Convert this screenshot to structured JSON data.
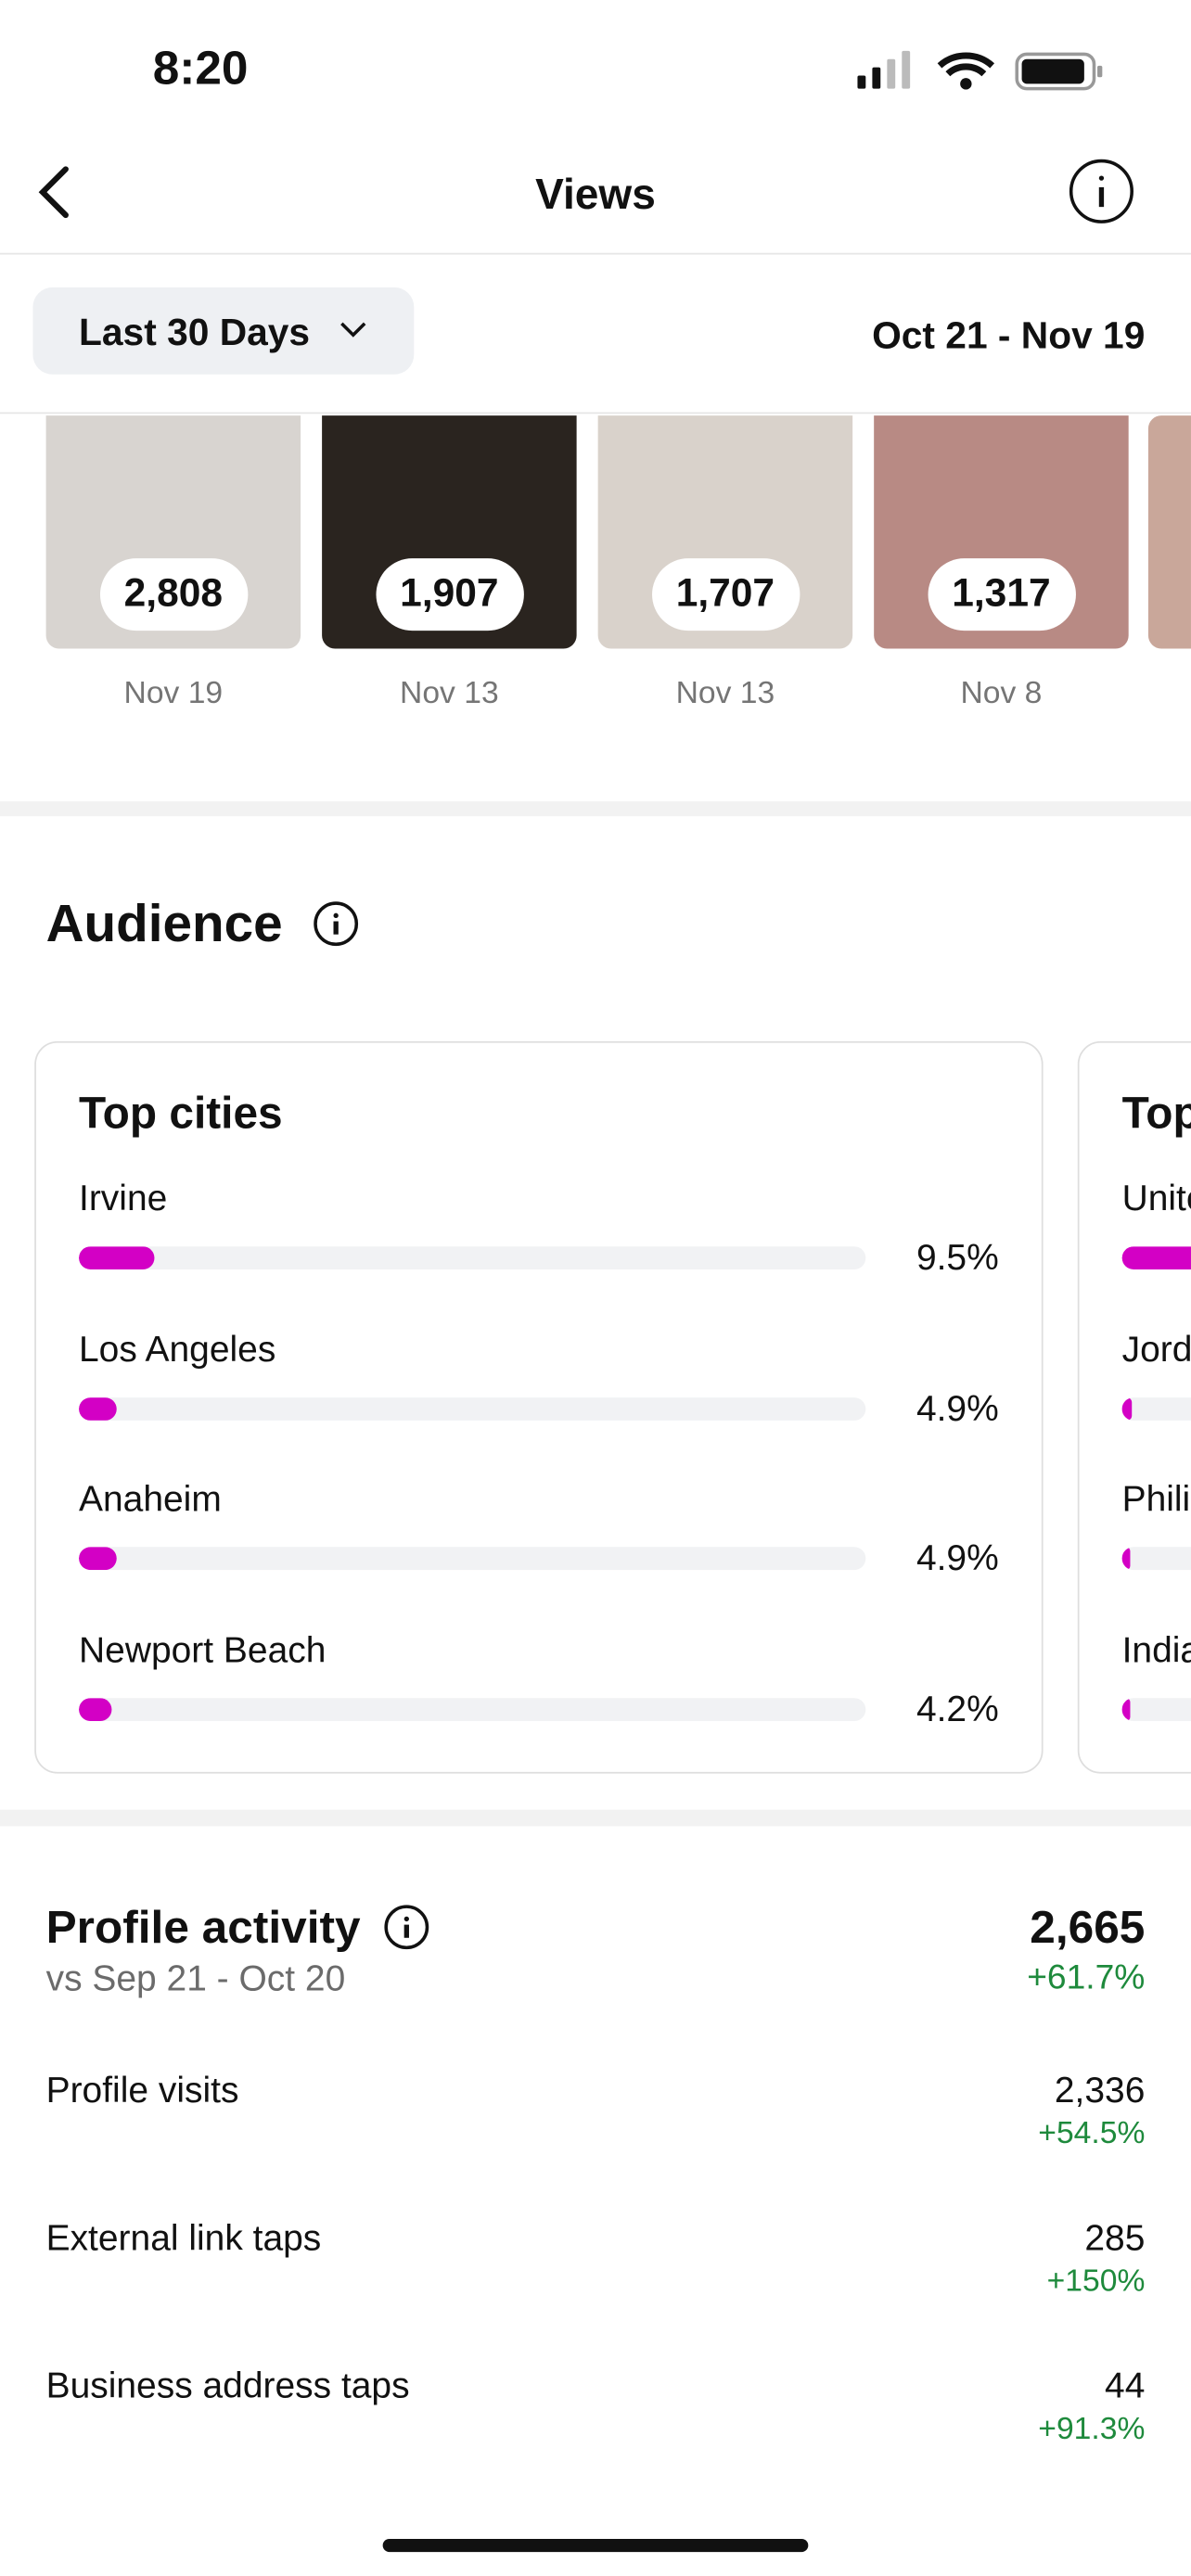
{
  "status": {
    "time": "8:20"
  },
  "header": {
    "title": "Views"
  },
  "filter": {
    "label": "Last 30 Days",
    "range": "Oct 21 - Nov 19"
  },
  "posts": [
    {
      "views": "2,808",
      "date": "Nov 19"
    },
    {
      "views": "1,907",
      "date": "Nov 13"
    },
    {
      "views": "1,707",
      "date": "Nov 13"
    },
    {
      "views": "1,317",
      "date": "Nov 8"
    }
  ],
  "audience": {
    "title": "Audience",
    "cards": [
      {
        "title": "Top cities",
        "rows": [
          {
            "name": "Irvine",
            "value": 9.5,
            "label": "9.5%"
          },
          {
            "name": "Los Angeles",
            "value": 4.9,
            "label": "4.9%"
          },
          {
            "name": "Anaheim",
            "value": 4.9,
            "label": "4.9%"
          },
          {
            "name": "Newport Beach",
            "value": 4.2,
            "label": "4.2%"
          }
        ]
      },
      {
        "title": "Top countries",
        "rows": [
          {
            "name": "United States",
            "value": 90
          },
          {
            "name": "Jordan",
            "value": 1.2
          },
          {
            "name": "Philippines",
            "value": 1.1
          },
          {
            "name": "India",
            "value": 1
          }
        ]
      }
    ]
  },
  "profile_activity": {
    "title": "Profile activity",
    "comparison": "vs Sep 21 - Oct 20",
    "total": "2,665",
    "change": "+61.7%",
    "rows": [
      {
        "label": "Profile visits",
        "value": "2,336",
        "change": "+54.5%"
      },
      {
        "label": "External link taps",
        "value": "285",
        "change": "+150%"
      },
      {
        "label": "Business address taps",
        "value": "44",
        "change": "+91.3%"
      }
    ]
  }
}
